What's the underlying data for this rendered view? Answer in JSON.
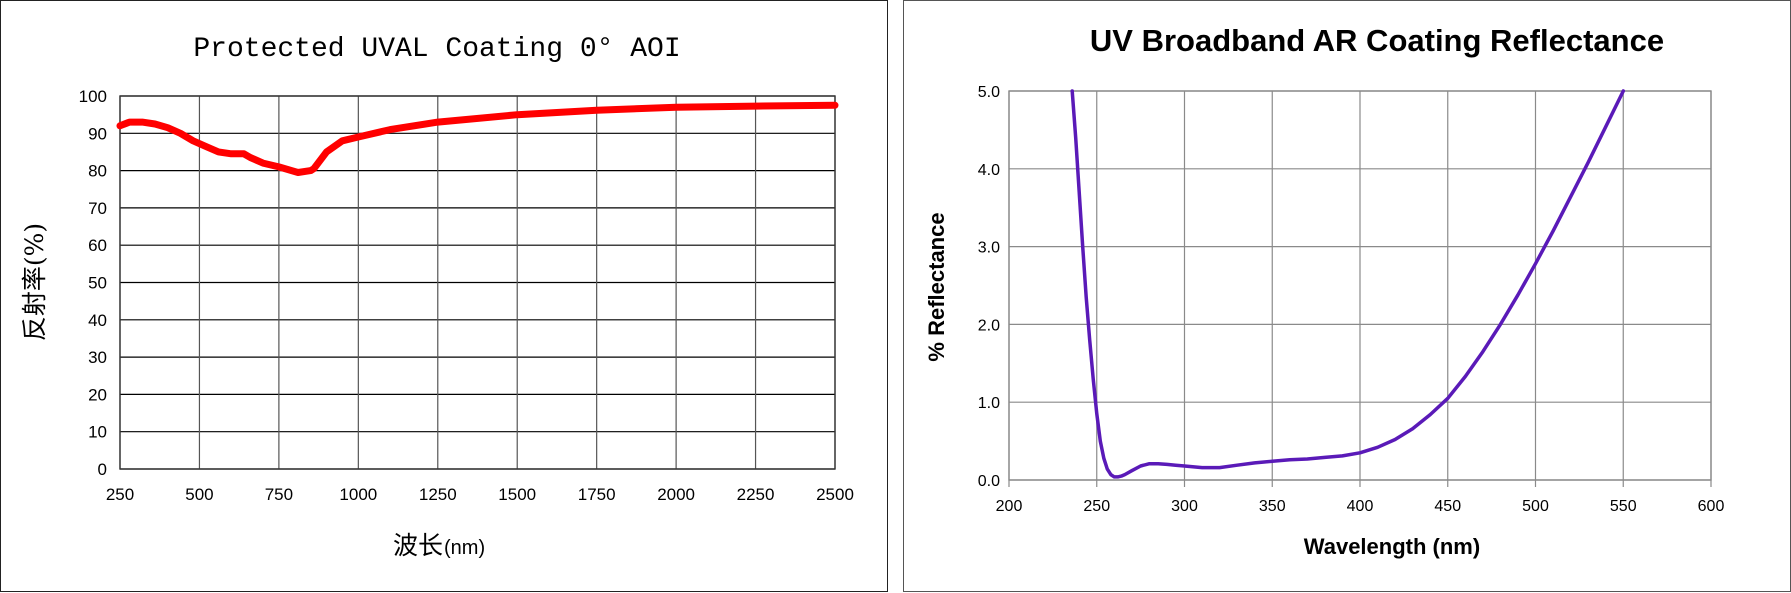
{
  "chart_data": [
    {
      "type": "line",
      "title": "Protected UVAL Coating 0°  AOI",
      "xlabel": "波长",
      "xlabel_unit": "(nm)",
      "ylabel": "反射率(%)",
      "xlim": [
        250,
        2500
      ],
      "ylim": [
        0,
        100
      ],
      "xticks": [
        "250",
        "500",
        "750",
        "1000",
        "1250",
        "1500",
        "1750",
        "2000",
        "2250",
        "2500"
      ],
      "yticks": [
        "0",
        "10",
        "20",
        "30",
        "40",
        "50",
        "60",
        "70",
        "80",
        "90",
        "100"
      ],
      "grid": true,
      "legend": "none",
      "series": [
        {
          "color": "#ff0000",
          "x": [
            250,
            280,
            320,
            360,
            400,
            440,
            480,
            520,
            560,
            600,
            640,
            660,
            700,
            750,
            790,
            810,
            850,
            860,
            900,
            950,
            1000,
            1100,
            1250,
            1500,
            1750,
            2000,
            2250,
            2500
          ],
          "y": [
            92,
            93,
            93,
            92.5,
            91.5,
            90,
            88,
            86.5,
            85,
            84.5,
            84.5,
            83.5,
            82,
            81,
            80,
            79.5,
            80,
            80.5,
            85,
            88,
            89,
            91,
            93,
            95,
            96.2,
            97,
            97.3,
            97.5
          ]
        }
      ]
    },
    {
      "type": "line",
      "title": "UV Broadband AR Coating Reflectance",
      "xlabel": "Wavelength (nm)",
      "ylabel": "% Reflectance",
      "xlim": [
        200,
        600
      ],
      "ylim": [
        0,
        5
      ],
      "xticks": [
        "200",
        "250",
        "300",
        "350",
        "400",
        "450",
        "500",
        "550",
        "600"
      ],
      "yticks": [
        "0.0",
        "1.0",
        "2.0",
        "3.0",
        "4.0",
        "5.0"
      ],
      "grid": true,
      "legend": "none",
      "series": [
        {
          "color": "#5a1ab8",
          "x": [
            236,
            238,
            240,
            242,
            244,
            246,
            248,
            250,
            252,
            254,
            256,
            258,
            260,
            262,
            264,
            266,
            270,
            275,
            280,
            285,
            290,
            295,
            300,
            310,
            320,
            330,
            340,
            350,
            360,
            370,
            380,
            390,
            400,
            410,
            420,
            430,
            440,
            450,
            460,
            470,
            480,
            490,
            500,
            510,
            520,
            530,
            540,
            550
          ],
          "y": [
            5.0,
            4.4,
            3.7,
            3.0,
            2.35,
            1.8,
            1.3,
            0.85,
            0.5,
            0.28,
            0.14,
            0.07,
            0.04,
            0.04,
            0.05,
            0.07,
            0.12,
            0.18,
            0.21,
            0.21,
            0.2,
            0.19,
            0.18,
            0.16,
            0.16,
            0.19,
            0.22,
            0.24,
            0.26,
            0.27,
            0.29,
            0.31,
            0.35,
            0.42,
            0.52,
            0.66,
            0.84,
            1.05,
            1.33,
            1.65,
            2.0,
            2.38,
            2.78,
            3.2,
            3.64,
            4.08,
            4.54,
            5.0
          ]
        }
      ]
    }
  ]
}
